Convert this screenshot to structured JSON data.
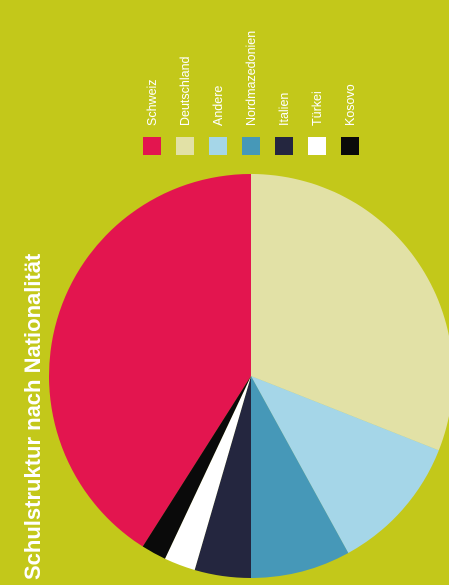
{
  "chart_data": {
    "type": "pie",
    "title": "Schulstruktur nach Nationalität",
    "orientation": "rotated-90-ccw",
    "legend_position": "top",
    "slices": [
      {
        "label": "Schweiz",
        "value": 41,
        "color": "#e3154f"
      },
      {
        "label": "Deutschland",
        "value": 31,
        "color": "#e2e1a6"
      },
      {
        "label": "Andere",
        "value": 11,
        "color": "#a5d6e8"
      },
      {
        "label": "Nordmazedonien",
        "value": 8,
        "color": "#4698b8"
      },
      {
        "label": "Italien",
        "value": 4.5,
        "color": "#24263f"
      },
      {
        "label": "Türkei",
        "value": 2.5,
        "color": "#ffffff"
      },
      {
        "label": "Kosovo",
        "value": 2,
        "color": "#0a0a0a"
      }
    ]
  },
  "colors": {
    "background": "#c3c81a",
    "text": "#ffffff"
  }
}
